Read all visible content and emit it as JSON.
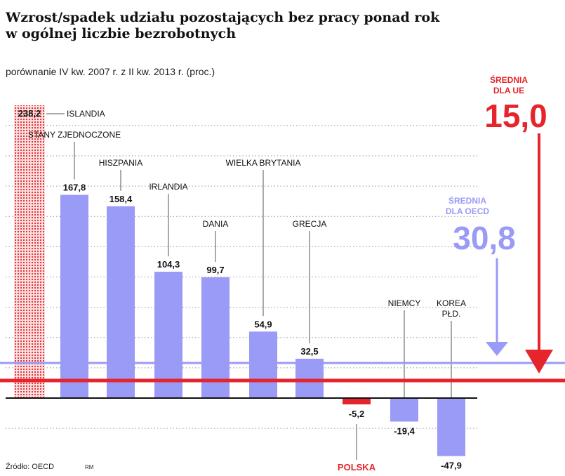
{
  "title": "Wzrost/spadek udziału pozostających bez pracy ponad rok w ogólnej liczbie bezrobotnych",
  "subtitle": "porównanie IV kw. 2007 r. z II kw. 2013 r. (proc.)",
  "source": "Źródło: OECD",
  "author": "RM",
  "colors": {
    "bar": "#9a9af7",
    "eu": "#e5252b",
    "islandia": "#e5252b",
    "text": "#111111"
  },
  "chart_data": {
    "type": "bar",
    "ylim": [
      -60,
      240
    ],
    "categories": [
      "ISLANDIA",
      "STANY ZJEDNOCZONE",
      "HISZPANIA",
      "IRLANDIA",
      "DANIA",
      "WIELKA BRYTANIA",
      "GRECJA",
      "POLSKA",
      "NIEMCY",
      "KOREA PŁD."
    ],
    "values": [
      238.2,
      167.8,
      158.4,
      104.3,
      99.7,
      54.9,
      32.5,
      -5.2,
      -19.4,
      -47.9
    ],
    "value_labels": [
      "238,2",
      "167,8",
      "158,4",
      "104,3",
      "99,7",
      "54,9",
      "32,5",
      "-5,2",
      "-19,4",
      "-47,9"
    ],
    "reference_lines": [
      {
        "label": "ŚREDNIA DLA OECD",
        "value": 30.8,
        "value_label": "30,8",
        "color": "#9a9af7"
      },
      {
        "label": "ŚREDNIA DLA UE",
        "value": 15.0,
        "value_label": "15,0",
        "color": "#e5252b"
      }
    ],
    "grid": true
  }
}
